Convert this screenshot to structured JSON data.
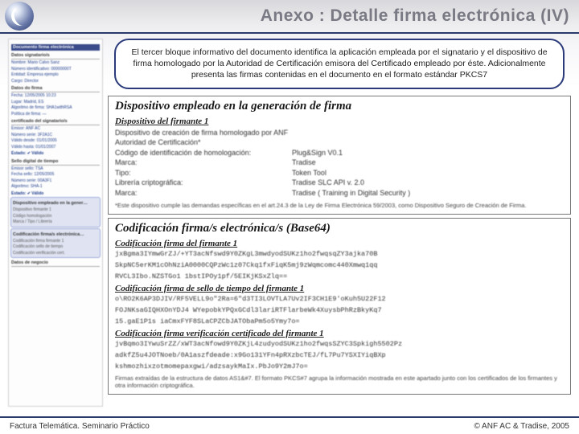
{
  "header": {
    "title": "Anexo : Detalle firma electrónica (IV)"
  },
  "sidebar": {
    "doc_title": "Documento firma electrónica",
    "sections": [
      {
        "heading": "Datos signatario/s",
        "rows": [
          "Nombre:  Mario Calvo Sanz",
          "Número identificativo: 00000000T",
          "Entidad: Empresa ejemplo",
          "Cargo: Director"
        ]
      },
      {
        "heading": "Datos do firma",
        "rows": [
          "Fecha:  12/05/2005 10:23",
          "Lugar:  Madrid, ES",
          "Algoritmo de firma: SHA1withRSA",
          "Política de firma: —"
        ]
      },
      {
        "heading": "certificado del signatario/s",
        "rows": [
          "Emisor: ANF AC",
          "Número serie: 3F2A1C",
          "Válido desde: 01/01/2005",
          "Válido hasta: 01/01/2007",
          "Estado: ✔ Válido"
        ]
      },
      {
        "heading": "Sello digital de tiempo",
        "rows": [
          "Emisor sello: TSA",
          "Fecha sello: 12/05/2005",
          "Número serie: 00A3F1",
          "Algoritmo: SHA-1",
          "Estado: ✔ Válido"
        ]
      }
    ],
    "highlighted": [
      {
        "heading": "Dispositivo empleado en la gener…",
        "rows": [
          "Dispositivo firmante 1",
          "Código homologación",
          "Marca / Tipo / Librería"
        ]
      },
      {
        "heading": "Codificación firma/s electrónica…",
        "rows": [
          "Codificación firma firmante 1",
          "Codificación sello de tiempo",
          "Codificación verificación cert."
        ]
      }
    ],
    "last": {
      "heading": "Datos de negocio",
      "rows": [
        ""
      ]
    }
  },
  "infobox": {
    "text": "El tercer bloque informativo del documento identifica la aplicación empleada por el signatario y el dispositivo de firma homologado por la Autoridad de Certificación emisora del Certificado empleado por éste. Adicionalmente presenta las firmas contenidas en el documento en el formato estándar PKCS7"
  },
  "panel1": {
    "title": "Dispositivo empleado en la generación de firma",
    "sub": "Dispositivo del firmante 1",
    "rows": [
      {
        "k": "Dispositivo de creación de firma homologado por ANF Autoridad de Certificación*",
        "v": ""
      },
      {
        "k": "Código de identificación de homologación:",
        "v": "Plug&Sign V0.1"
      },
      {
        "k": "Marca:",
        "v": "Tradise"
      },
      {
        "k": "Tipo:",
        "v": "Token Tool"
      },
      {
        "k": "Librería criptográfica:",
        "v": "Tradise SLC API v. 2.0"
      },
      {
        "k": "Marca:",
        "v": "Tradise ( Training in Digital Security )"
      }
    ],
    "note": "*Este dispositivo cumple las demandas específicas en el art.24.3 de la Ley de Firma Electrónica 59/2003, como Dispositivo Seguro de Creación de Firma."
  },
  "panel2": {
    "title": "Codificación firma/s electrónica/s (Base64)",
    "blocks": [
      {
        "sub": "Codificación firma del firmante 1",
        "lines": [
          "jxBgma3IYmwGrZJ/+YT3acNfswd9Y0ZKgL3mwdyodSUKz1ho2fwqsqZY3ajka70B",
          "SkpNC5erKM1cOhNziA0000CQPzWc1z07Ckq1fxFiqK5mj9zWqmcomc440Xmwq1qq",
          "RVCL3Ibo.NZSTGo1 1bstIPOy1pf/5EIKjKSxZlq=="
        ]
      },
      {
        "sub": "Codificación firma de sello de tiempo del firmante 1",
        "lines": [
          "o\\RO2K6AP3DJIV/RF5VELL9o\"2Ra=6\"d3TI3LOVTLA7Uv2IF3CH1E9'oKuh5U22F12",
          "FOJNKsaGIQHXOnYDJ4 WYepobkYPQxGCdl3lariRTFlarbeWk4XuysbPhRzBkyKq7",
          "15.gaE1P1s iaCmxFYF8SLaCPZCbJATObaPm5o5Ymy7o="
        ]
      },
      {
        "sub": "Codificación firma verificación certificado del firmante 1",
        "lines": [
          "jvBqmo3IYwuSrZZ/xWT3acNfowd9Y0ZKjL4zudyodSUKz1ho2fwqsSZYC3Spkigh5502Pz",
          "adkfZ5u4JOTNoeb/0A1aszfdeade:x9Go131YFn4pRXzbcTEJ/fL7Pu7YSXIYiqBXp",
          "kshmozhixzotmomepaxgwi/adzsaykMaIx.PbJo9Y2mJ7o="
        ]
      }
    ],
    "note": "Firmas extraídas de la estructura de datos AS1&#7. El formato PKCS#7 agrupa la información mostrada en este apartado junto con los certificados de los firmantes y otra información criptográfica."
  },
  "footer": {
    "left": "Factura Telemática. Seminario Práctico",
    "right": "© ANF AC & Tradise, 2005"
  }
}
